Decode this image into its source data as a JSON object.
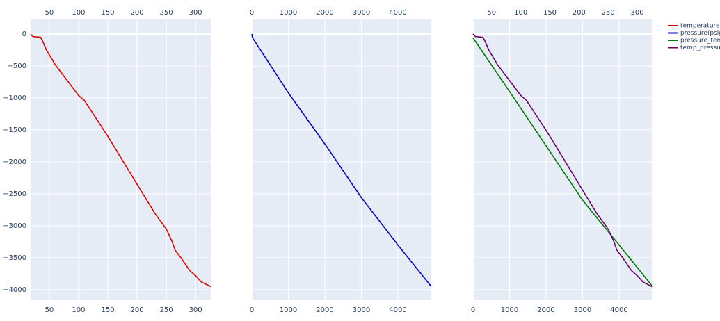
{
  "chart_data": [
    {
      "type": "line",
      "xlim": [
        18,
        326
      ],
      "xticks": [
        50,
        100,
        150,
        200,
        250,
        300
      ],
      "ylim": [
        -4163,
        228
      ],
      "yticks": [
        0,
        {
          "value": -500,
          "label": "−500"
        },
        {
          "value": -1000,
          "label": "−1000"
        },
        {
          "value": -1500,
          "label": "−1500"
        },
        {
          "value": -2000,
          "label": "−2000"
        },
        {
          "value": -2500,
          "label": "−2500"
        },
        {
          "value": -3000,
          "label": "−3000"
        },
        {
          "value": -3500,
          "label": "−3500"
        },
        {
          "value": -4000,
          "label": "−4000"
        }
      ],
      "grid": true,
      "series": [
        {
          "name": "temperature",
          "color": "#e00000",
          "x": [
            18,
            22,
            35,
            38,
            45,
            55,
            60,
            100,
            110,
            150,
            180,
            190,
            200,
            210,
            230,
            250,
            260,
            265,
            275,
            290,
            300,
            310,
            326
          ],
          "values": [
            0,
            -40,
            -50,
            -100,
            -250,
            -400,
            -480,
            -960,
            -1040,
            -1600,
            -2050,
            -2200,
            -2350,
            -2500,
            -2800,
            -3050,
            -3250,
            -3380,
            -3500,
            -3700,
            -3780,
            -3880,
            -3950
          ]
        }
      ]
    },
    {
      "type": "line",
      "xlim": [
        0,
        4914
      ],
      "xticks": [
        0,
        1000,
        2000,
        3000,
        4000
      ],
      "sharey": true,
      "grid": true,
      "series": [
        {
          "name": "pressure(psig)",
          "color": "#0000cc",
          "x": [
            0,
            20,
            500,
            1000,
            2000,
            3000,
            4000,
            4914
          ],
          "values": [
            0,
            -60,
            -480,
            -920,
            -1720,
            -2560,
            -3300,
            -3950
          ]
        }
      ]
    },
    {
      "type": "line",
      "xlim": [
        0,
        4895
      ],
      "xticks": [
        0,
        1000,
        2000,
        3000,
        4000
      ],
      "x2lim": [
        18,
        325
      ],
      "x2ticks": [
        50,
        100,
        150,
        200,
        250,
        300
      ],
      "sharey": true,
      "grid": true,
      "series": [
        {
          "name": "pressure_temp",
          "color": "#007a00",
          "x": [
            0,
            1000,
            2000,
            3000,
            4000,
            4895
          ],
          "values": [
            -60,
            -900,
            -1750,
            -2600,
            -3300,
            -3935
          ]
        },
        {
          "name": "temp_pressure",
          "color": "#6a006a",
          "axis": "x2",
          "x": [
            18,
            22,
            35,
            38,
            45,
            55,
            60,
            100,
            110,
            150,
            180,
            190,
            200,
            210,
            230,
            250,
            260,
            265,
            275,
            290,
            300,
            310,
            325
          ],
          "values": [
            0,
            -40,
            -50,
            -100,
            -250,
            -400,
            -480,
            -960,
            -1040,
            -1600,
            -2050,
            -2200,
            -2350,
            -2500,
            -2800,
            -3050,
            -3250,
            -3380,
            -3500,
            -3700,
            -3780,
            -3880,
            -3950
          ]
        }
      ]
    }
  ]
}
